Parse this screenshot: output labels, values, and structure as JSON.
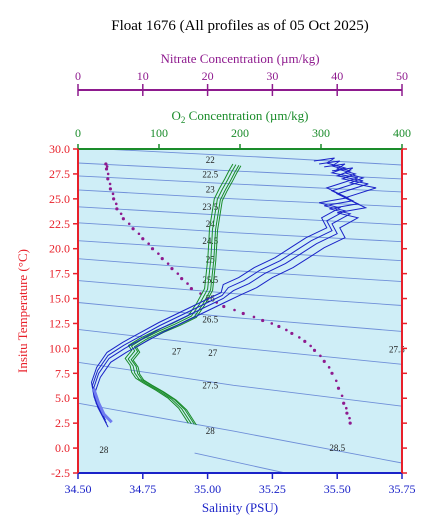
{
  "title": "Float 1676  (All profiles as of 05 Oct 2025)",
  "colors": {
    "background": "#cfeef7",
    "temperature": "#e8202a",
    "salinity": "#1a22c8",
    "oxygen": "#1a8c2a",
    "nitrate": "#8e1a8e",
    "isopycnal": "#6f8fd8"
  },
  "chart_data": {
    "type": "scatter",
    "title": "Float 1676  (All profiles as of 05 Oct 2025)",
    "xlabel": "Salinity (PSU)",
    "ylabel": "Insitu Temperature (°C)",
    "xlim": [
      34.5,
      35.75
    ],
    "ylim": [
      -2.5,
      30.0
    ],
    "grid": false,
    "x_ticks": [
      "34.50",
      "34.75",
      "35.00",
      "35.25",
      "35.50",
      "35.75"
    ],
    "y_ticks": [
      "-2.5",
      "0.0",
      "2.5",
      "5.0",
      "7.5",
      "10.0",
      "12.5",
      "15.0",
      "17.5",
      "20.0",
      "22.5",
      "25.0",
      "27.5",
      "30.0"
    ],
    "secondary_axes": [
      {
        "label": "Nitrate Concentration (µm/kg)",
        "lim": [
          0,
          50
        ],
        "ticks": [
          "0",
          "10",
          "20",
          "30",
          "40",
          "50"
        ]
      },
      {
        "label_prefix": "O",
        "label_sub": "2",
        "label_suffix": " Concentration (µm/kg)",
        "lim": [
          0,
          400
        ],
        "ticks": [
          "0",
          "100",
          "200",
          "300",
          "400"
        ]
      }
    ],
    "density_contours": [
      {
        "label": "22",
        "t": [
          30.0,
          29.2,
          28.4
        ],
        "s": [
          34.6,
          35.2,
          35.75
        ]
      },
      {
        "label": "22.5",
        "t": [
          28.6,
          27.8,
          27.0
        ],
        "s": [
          34.5,
          35.1,
          35.75
        ]
      },
      {
        "label": "23",
        "t": [
          27.3,
          26.5,
          25.7
        ],
        "s": [
          34.5,
          35.1,
          35.75
        ]
      },
      {
        "label": "23.5",
        "t": [
          25.9,
          25.0,
          24.2
        ],
        "s": [
          34.5,
          35.1,
          35.75
        ]
      },
      {
        "label": "24",
        "t": [
          24.2,
          23.3,
          22.4
        ],
        "s": [
          34.5,
          35.1,
          35.75
        ]
      },
      {
        "label": "24.5",
        "t": [
          22.6,
          21.6,
          20.7
        ],
        "s": [
          34.5,
          35.1,
          35.75
        ]
      },
      {
        "label": "25",
        "t": [
          20.8,
          19.8,
          18.8
        ],
        "s": [
          34.5,
          35.1,
          35.75
        ]
      },
      {
        "label": "25.5",
        "t": [
          19.0,
          17.8,
          16.7
        ],
        "s": [
          34.5,
          35.1,
          35.75
        ]
      },
      {
        "label": "26",
        "t": [
          16.8,
          15.5,
          14.3
        ],
        "s": [
          34.5,
          35.1,
          35.75
        ]
      },
      {
        "label": "26.5",
        "t": [
          14.6,
          13.1,
          11.7
        ],
        "s": [
          34.5,
          35.1,
          35.75
        ]
      },
      {
        "label": "27",
        "t": [
          11.9,
          10.1,
          8.4
        ],
        "s": [
          34.5,
          35.1,
          35.75
        ]
      },
      {
        "label": "27.5",
        "t": [
          8.6,
          6.3,
          4.2
        ],
        "s": [
          34.5,
          35.1,
          35.75
        ]
      },
      {
        "label": "28",
        "t": [
          4.5,
          1.7,
          -1.5
        ],
        "s": [
          34.5,
          35.1,
          35.75
        ]
      },
      {
        "label": "28.5",
        "t": [
          -0.5,
          -2.5
        ],
        "s": [
          34.95,
          35.3
        ]
      }
    ],
    "series": [
      {
        "name": "Salinity",
        "style": "line",
        "x": [
          34.61,
          34.59,
          34.57,
          34.56,
          34.58,
          34.62,
          34.68,
          34.75,
          34.82,
          34.9,
          34.98,
          35.06,
          35.1,
          35.16,
          35.22,
          35.3,
          35.36,
          35.42,
          35.5,
          35.48,
          35.55,
          35.47,
          35.58,
          35.5,
          35.62,
          35.52,
          35.57,
          35.5,
          35.53,
          35.45
        ],
        "y": [
          2.5,
          3.5,
          4.5,
          6.0,
          7.5,
          9.0,
          10.0,
          11.0,
          12.0,
          13.0,
          14.0,
          15.0,
          15.8,
          16.5,
          17.5,
          18.5,
          19.5,
          20.5,
          21.5,
          22.5,
          23.5,
          24.0,
          24.5,
          25.5,
          26.5,
          27.0,
          27.5,
          28.0,
          28.5,
          28.2
        ]
      },
      {
        "name": "Oxygen",
        "style": "line",
        "x": [
          140,
          128,
          115,
          100,
          85,
          75,
          70,
          68,
          62,
          70,
          66,
          80,
          100,
          120,
          140,
          150,
          160,
          162,
          164,
          165,
          166,
          168,
          170,
          172,
          178,
          185,
          190,
          195
        ],
        "y": [
          2.5,
          4.0,
          5.0,
          5.8,
          6.5,
          7.0,
          7.6,
          8.3,
          9.0,
          9.8,
          10.3,
          11.0,
          11.8,
          12.5,
          13.3,
          14.5,
          16.0,
          17.5,
          19.0,
          20.5,
          22.0,
          23.0,
          24.0,
          25.0,
          26.0,
          27.0,
          27.8,
          28.5
        ]
      },
      {
        "name": "Nitrate",
        "style": "points",
        "x": [
          42.0,
          41.5,
          41.0,
          40.2,
          39.2,
          38.0,
          36.5,
          35.0,
          33.0,
          31.0,
          28.5,
          25.5,
          22.5,
          20.0,
          17.5,
          16.0,
          14.5,
          13.0,
          11.5,
          10.0,
          8.5,
          7.0,
          6.0,
          5.5,
          5.0,
          4.6,
          4.4,
          4.3
        ],
        "y": [
          2.5,
          3.5,
          4.5,
          6.0,
          7.5,
          8.7,
          9.8,
          10.7,
          11.5,
          12.2,
          12.8,
          13.5,
          14.2,
          15.0,
          16.0,
          17.0,
          18.0,
          19.0,
          20.0,
          21.0,
          22.0,
          23.0,
          24.0,
          25.0,
          26.0,
          27.0,
          28.0,
          28.5
        ]
      }
    ]
  }
}
